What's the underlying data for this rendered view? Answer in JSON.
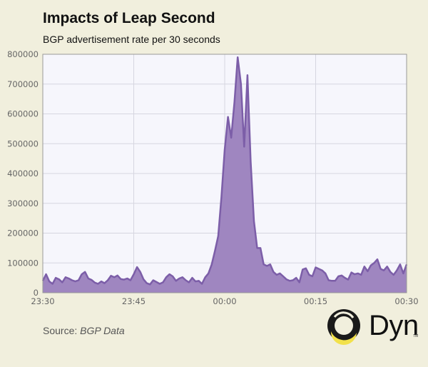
{
  "header": {
    "title": "Impacts of Leap Second",
    "subtitle": "BGP advertisement rate per 30 seconds"
  },
  "source": {
    "label": "Source:",
    "value": "BGP Data"
  },
  "logo": {
    "text": "Dyn",
    "tm": "TM",
    "colors": {
      "ring_dark": "#1a1a1a",
      "ring_accent": "#f2e14b"
    }
  },
  "chart_data": {
    "type": "area",
    "title": "Impacts of Leap Second",
    "subtitle": "BGP advertisement rate per 30 seconds",
    "xlabel": "",
    "ylabel": "",
    "x_ticks": [
      "23:30",
      "23:45",
      "00:00",
      "00:15",
      "00:30"
    ],
    "y_ticks": [
      "0",
      "100000",
      "200000",
      "300000",
      "400000",
      "500000",
      "600000",
      "700000",
      "800000"
    ],
    "ylim": [
      0,
      800000
    ],
    "grid": true,
    "colors": {
      "fill": "#9f86c0",
      "line": "#7c5ea8",
      "plot_bg": "#f6f6fc",
      "grid": "#d6d6e0"
    },
    "series": [
      {
        "values": [
          40000,
          62000,
          38000,
          30000,
          50000,
          45000,
          35000,
          52000,
          48000,
          42000,
          38000,
          42000,
          62000,
          70000,
          48000,
          43000,
          34000,
          30000,
          38000,
          32000,
          42000,
          57000,
          52000,
          58000,
          46000,
          44000,
          48000,
          42000,
          62000,
          86000,
          70000,
          45000,
          32000,
          28000,
          42000,
          36000,
          30000,
          35000,
          52000,
          62000,
          55000,
          40000,
          48000,
          52000,
          42000,
          35000,
          50000,
          38000,
          40000,
          30000,
          52000,
          65000,
          95000,
          140000,
          190000,
          320000,
          480000,
          590000,
          520000,
          640000,
          790000,
          700000,
          490000,
          730000,
          440000,
          240000,
          150000,
          150000,
          95000,
          90000,
          95000,
          70000,
          60000,
          65000,
          55000,
          45000,
          40000,
          42000,
          50000,
          35000,
          78000,
          82000,
          60000,
          55000,
          85000,
          80000,
          75000,
          65000,
          42000,
          40000,
          40000,
          55000,
          58000,
          50000,
          44000,
          68000,
          62000,
          65000,
          60000,
          88000,
          72000,
          92000,
          100000,
          112000,
          80000,
          75000,
          88000,
          70000,
          60000,
          75000,
          95000,
          65000,
          95000
        ]
      }
    ]
  }
}
